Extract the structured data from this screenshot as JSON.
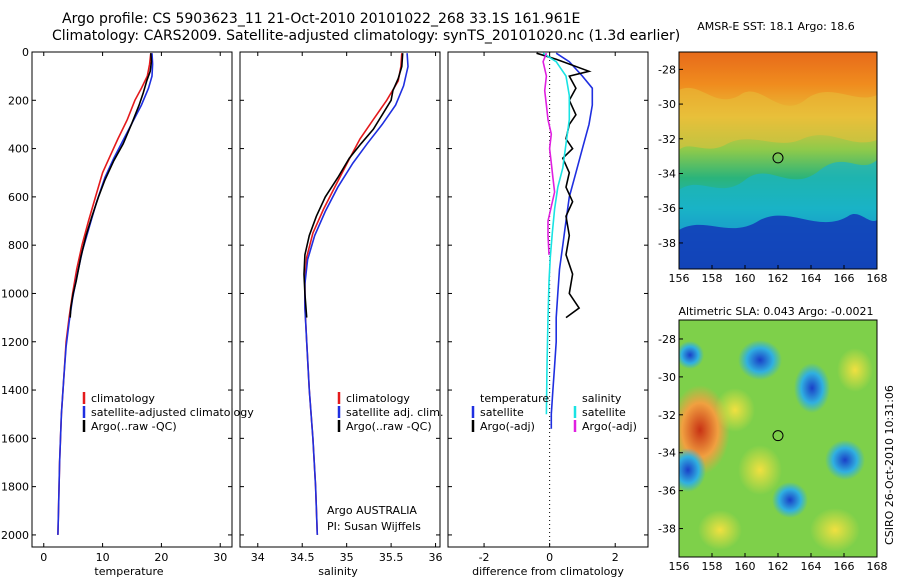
{
  "title_line1": "Argo profile: CS 5903623_11 21-Oct-2010 20101022_268 33.1S 161.961E",
  "title_line2": "Climatology: CARS2009. Satellite-adjusted climatology: synTS_20101020.nc (1.3d earlier)",
  "credit": {
    "institution": "Argo AUSTRALIA",
    "pi": "PI: Susan Wijffels"
  },
  "side_stamp": "CSIRO 26-Oct-2010 10:31:06",
  "colors": {
    "climatology": "#e41a1c",
    "satellite": "#1f2fe0",
    "argo": "#000000",
    "sat_salinity": "#19e3e3",
    "argo_salinity": "#e020e0"
  },
  "chart_data": [
    {
      "type": "line",
      "id": "temperature",
      "xlabel": "temperature",
      "ylabel": "",
      "xlim": [
        -2,
        32
      ],
      "ylim": [
        2050,
        0
      ],
      "xticks": [
        0,
        10,
        20,
        30
      ],
      "yticks": [
        0,
        200,
        400,
        600,
        800,
        1000,
        1200,
        1400,
        1600,
        1800,
        2000
      ],
      "legend": [
        "climatology",
        "satellite-adjusted climatology",
        "Argo(..raw -QC)"
      ],
      "series": [
        {
          "name": "climatology",
          "color": "#e41a1c",
          "points": [
            [
              18.2,
              5
            ],
            [
              18.0,
              50
            ],
            [
              17.6,
              100
            ],
            [
              16.6,
              150
            ],
            [
              15.5,
              200
            ],
            [
              14.2,
              280
            ],
            [
              12.6,
              360
            ],
            [
              11.3,
              430
            ],
            [
              10.0,
              500
            ],
            [
              8.8,
              600
            ],
            [
              7.6,
              700
            ],
            [
              6.5,
              800
            ],
            [
              5.6,
              900
            ],
            [
              4.9,
              1000
            ],
            [
              4.3,
              1100
            ],
            [
              3.8,
              1200
            ],
            [
              3.4,
              1350
            ],
            [
              3.0,
              1500
            ],
            [
              2.7,
              1700
            ],
            [
              2.5,
              1900
            ],
            [
              2.4,
              2000
            ]
          ]
        },
        {
          "name": "satellite-adjusted climatology",
          "color": "#1f2fe0",
          "points": [
            [
              18.4,
              5
            ],
            [
              18.5,
              50
            ],
            [
              18.4,
              100
            ],
            [
              17.8,
              150
            ],
            [
              16.6,
              220
            ],
            [
              15.1,
              290
            ],
            [
              13.4,
              370
            ],
            [
              11.9,
              440
            ],
            [
              10.4,
              520
            ],
            [
              9.0,
              620
            ],
            [
              7.8,
              720
            ],
            [
              6.6,
              820
            ],
            [
              5.7,
              920
            ],
            [
              4.9,
              1020
            ],
            [
              4.3,
              1120
            ],
            [
              3.8,
              1220
            ],
            [
              3.4,
              1350
            ],
            [
              3.0,
              1500
            ],
            [
              2.7,
              1700
            ],
            [
              2.5,
              1900
            ],
            [
              2.4,
              2000
            ]
          ]
        },
        {
          "name": "Argo(..raw -QC)",
          "color": "#000000",
          "points": [
            [
              18.2,
              5
            ],
            [
              18.3,
              40
            ],
            [
              18.1,
              80
            ],
            [
              17.5,
              120
            ],
            [
              16.9,
              170
            ],
            [
              16.2,
              220
            ],
            [
              14.9,
              300
            ],
            [
              13.5,
              380
            ],
            [
              11.9,
              450
            ],
            [
              10.4,
              530
            ],
            [
              9.3,
              600
            ],
            [
              8.2,
              680
            ],
            [
              7.2,
              760
            ],
            [
              6.3,
              850
            ],
            [
              5.5,
              950
            ],
            [
              5.0,
              1000
            ],
            [
              4.6,
              1060
            ],
            [
              4.5,
              1100
            ]
          ]
        }
      ]
    },
    {
      "type": "line",
      "id": "salinity",
      "xlabel": "salinity",
      "ylabel": "",
      "xlim": [
        33.8,
        36.05
      ],
      "ylim": [
        2050,
        0
      ],
      "xticks": [
        34,
        34.5,
        35,
        35.5,
        36
      ],
      "xticklabels": [
        "34",
        "34.5",
        "35",
        "35.5",
        "36"
      ],
      "yticks": [
        0,
        200,
        400,
        600,
        800,
        1000,
        1200,
        1400,
        1600,
        1800,
        2000
      ],
      "legend": [
        "climatology",
        "satellite adj. clim.",
        "Argo(..raw -QC)"
      ],
      "series": [
        {
          "name": "climatology",
          "color": "#e41a1c",
          "points": [
            [
              35.62,
              5
            ],
            [
              35.61,
              60
            ],
            [
              35.58,
              120
            ],
            [
              35.45,
              200
            ],
            [
              35.3,
              280
            ],
            [
              35.15,
              360
            ],
            [
              35.02,
              450
            ],
            [
              34.88,
              550
            ],
            [
              34.74,
              650
            ],
            [
              34.62,
              750
            ],
            [
              34.55,
              850
            ],
            [
              34.53,
              950
            ],
            [
              34.53,
              1050
            ],
            [
              34.55,
              1200
            ],
            [
              34.58,
              1400
            ],
            [
              34.62,
              1600
            ],
            [
              34.65,
              1800
            ],
            [
              34.67,
              2000
            ]
          ]
        },
        {
          "name": "satellite adj. clim.",
          "color": "#1f2fe0",
          "points": [
            [
              35.68,
              5
            ],
            [
              35.69,
              60
            ],
            [
              35.64,
              140
            ],
            [
              35.55,
              220
            ],
            [
              35.4,
              300
            ],
            [
              35.23,
              380
            ],
            [
              35.07,
              460
            ],
            [
              34.9,
              560
            ],
            [
              34.76,
              660
            ],
            [
              34.64,
              760
            ],
            [
              34.56,
              860
            ],
            [
              34.53,
              960
            ],
            [
              34.53,
              1060
            ],
            [
              34.55,
              1200
            ],
            [
              34.58,
              1400
            ],
            [
              34.62,
              1600
            ],
            [
              34.65,
              1800
            ],
            [
              34.67,
              2000
            ]
          ]
        },
        {
          "name": "Argo(..raw -QC)",
          "color": "#000000",
          "points": [
            [
              35.63,
              5
            ],
            [
              35.62,
              60
            ],
            [
              35.58,
              110
            ],
            [
              35.52,
              160
            ],
            [
              35.5,
              200
            ],
            [
              35.4,
              260
            ],
            [
              35.3,
              320
            ],
            [
              35.16,
              380
            ],
            [
              35.03,
              440
            ],
            [
              34.9,
              520
            ],
            [
              34.76,
              600
            ],
            [
              34.66,
              680
            ],
            [
              34.58,
              760
            ],
            [
              34.53,
              840
            ],
            [
              34.52,
              920
            ],
            [
              34.53,
              1000
            ],
            [
              34.55,
              1100
            ]
          ]
        }
      ]
    },
    {
      "type": "line",
      "id": "difference",
      "xlabel": "difference from climatology",
      "ylabel": "",
      "xlim": [
        -3.1,
        3.0
      ],
      "ylim": [
        2050,
        0
      ],
      "xticks": [
        -2,
        0,
        2
      ],
      "yticks": [
        0,
        200,
        400,
        600,
        800,
        1000,
        1200,
        1400,
        1600,
        1800,
        2000
      ],
      "legend_left_title": "temperature",
      "legend_right_title": "salinity",
      "legend": [
        "satellite",
        "Argo(-adj)",
        "satellite",
        "Argo(-adj)"
      ],
      "series": [
        {
          "name": "satellite",
          "group": "temperature",
          "color": "#1f2fe0",
          "points": [
            [
              0.2,
              5
            ],
            [
              0.6,
              40
            ],
            [
              1.0,
              100
            ],
            [
              1.3,
              150
            ],
            [
              1.3,
              220
            ],
            [
              1.2,
              300
            ],
            [
              1.0,
              400
            ],
            [
              0.8,
              500
            ],
            [
              0.6,
              600
            ],
            [
              0.5,
              700
            ],
            [
              0.4,
              800
            ],
            [
              0.3,
              900
            ],
            [
              0.25,
              1000
            ],
            [
              0.2,
              1100
            ],
            [
              0.2,
              1200
            ],
            [
              0.15,
              1300
            ],
            [
              0.1,
              1400
            ],
            [
              0.05,
              1500
            ],
            [
              0.05,
              1560
            ]
          ]
        },
        {
          "name": "Argo(-adj)",
          "group": "temperature",
          "color": "#000000",
          "points": [
            [
              -0.4,
              5
            ],
            [
              0.2,
              30
            ],
            [
              1.2,
              80
            ],
            [
              0.6,
              100
            ],
            [
              0.8,
              150
            ],
            [
              0.6,
              200
            ],
            [
              0.8,
              260
            ],
            [
              0.6,
              300
            ],
            [
              0.5,
              360
            ],
            [
              0.7,
              400
            ],
            [
              0.4,
              440
            ],
            [
              0.6,
              500
            ],
            [
              0.5,
              560
            ],
            [
              0.7,
              620
            ],
            [
              0.5,
              680
            ],
            [
              0.6,
              760
            ],
            [
              0.5,
              840
            ],
            [
              0.7,
              920
            ],
            [
              0.6,
              1000
            ],
            [
              0.9,
              1060
            ],
            [
              0.5,
              1100
            ]
          ]
        },
        {
          "name": "satellite",
          "group": "salinity",
          "color": "#19e3e3",
          "points": [
            [
              -0.2,
              5
            ],
            [
              0.2,
              40
            ],
            [
              0.5,
              100
            ],
            [
              0.6,
              180
            ],
            [
              0.6,
              280
            ],
            [
              0.5,
              380
            ],
            [
              0.4,
              480
            ],
            [
              0.25,
              560
            ],
            [
              0.15,
              650
            ],
            [
              0.08,
              750
            ],
            [
              0.02,
              850
            ],
            [
              -0.02,
              950
            ],
            [
              -0.05,
              1100
            ],
            [
              -0.08,
              1300
            ],
            [
              -0.1,
              1500
            ]
          ]
        },
        {
          "name": "Argo(-adj)",
          "group": "salinity",
          "color": "#e020e0",
          "points": [
            [
              -0.1,
              5
            ],
            [
              -0.2,
              40
            ],
            [
              -0.1,
              100
            ],
            [
              -0.15,
              160
            ],
            [
              -0.1,
              220
            ],
            [
              -0.05,
              280
            ],
            [
              0.05,
              340
            ],
            [
              0.0,
              400
            ],
            [
              0.05,
              460
            ],
            [
              0.1,
              520
            ],
            [
              0.15,
              580
            ],
            [
              0.05,
              640
            ],
            [
              -0.05,
              700
            ],
            [
              -0.05,
              760
            ],
            [
              -0.02,
              840
            ]
          ]
        }
      ]
    },
    {
      "type": "heatmap",
      "id": "sst_map",
      "title": "AMSR-E SST: 18.1 Argo: 18.6",
      "xlim": [
        156,
        168
      ],
      "ylim": [
        -39.5,
        -27
      ],
      "xticks": [
        156,
        158,
        160,
        162,
        164,
        166,
        168
      ],
      "yticks": [
        -28,
        -30,
        -32,
        -34,
        -36,
        -38
      ],
      "marker": {
        "lon": 162.0,
        "lat": -33.1
      }
    },
    {
      "type": "heatmap",
      "id": "sla_map",
      "title": "Altimetric SLA: 0.043 Argo: -0.0021",
      "xlim": [
        156,
        168
      ],
      "ylim": [
        -39.5,
        -27
      ],
      "xticks": [
        156,
        158,
        160,
        162,
        164,
        166,
        168
      ],
      "yticks": [
        -28,
        -30,
        -32,
        -34,
        -36,
        -38
      ],
      "marker": {
        "lon": 162.0,
        "lat": -33.1
      }
    }
  ]
}
